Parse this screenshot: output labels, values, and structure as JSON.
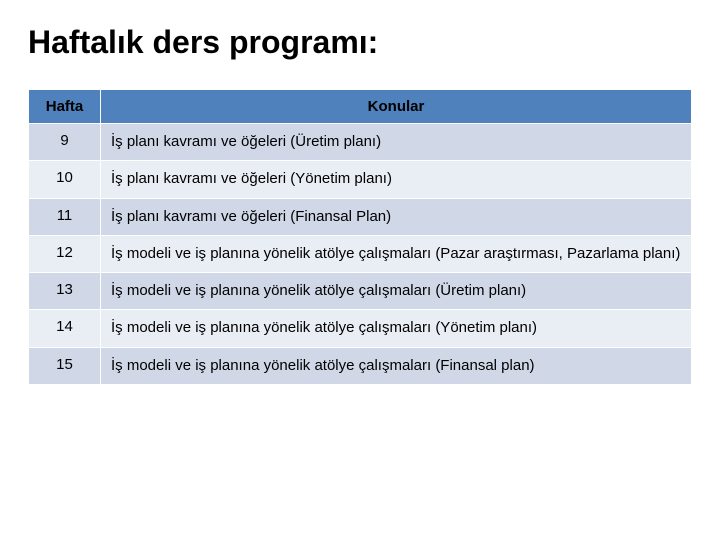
{
  "title": "Haftalık ders programı:",
  "table": {
    "header": {
      "bg_color": "#4f81bd",
      "week": "Hafta",
      "topic": "Konular"
    },
    "row_colors": {
      "band1": "#d0d8e8",
      "band2": "#e9edf4"
    },
    "rows": [
      {
        "week": "9",
        "topic": "İş planı kavramı ve öğeleri  (Üretim planı)"
      },
      {
        "week": "10",
        "topic": "İş planı kavramı ve öğeleri (Yönetim planı)"
      },
      {
        "week": "11",
        "topic": "İş planı kavramı ve öğeleri (Finansal Plan)"
      },
      {
        "week": "12",
        "topic": "İş modeli ve iş planına yönelik atölye çalışmaları (Pazar araştırması, Pazarlama planı)"
      },
      {
        "week": "13",
        "topic": "İş modeli ve iş planına yönelik atölye çalışmaları (Üretim planı)"
      },
      {
        "week": "14",
        "topic": "İş modeli ve iş planına yönelik atölye çalışmaları (Yönetim planı)"
      },
      {
        "week": "15",
        "topic": "İş modeli ve iş planına yönelik atölye çalışmaları (Finansal plan)"
      }
    ]
  }
}
